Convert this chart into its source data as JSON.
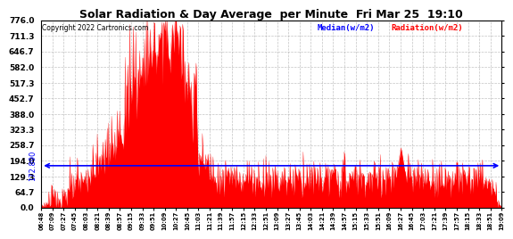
{
  "title": "Solar Radiation & Day Average  per Minute  Fri Mar 25  19:10",
  "copyright": "Copyright 2022 Cartronics.com",
  "median_value": 172.89,
  "median_label": "172.890",
  "y_ticks": [
    0.0,
    64.7,
    129.3,
    194.0,
    258.7,
    323.3,
    388.0,
    452.7,
    517.3,
    582.0,
    646.7,
    711.3,
    776.0
  ],
  "y_max": 776.0,
  "y_min": 0.0,
  "legend_median_color": "#0000FF",
  "legend_radiation_color": "#FF0000",
  "median_line_color": "#0000FF",
  "radiation_color": "#FF0000",
  "background_color": "#FFFFFF",
  "grid_color": "#AAAAAA",
  "x_labels": [
    "06:48",
    "07:09",
    "07:27",
    "07:45",
    "08:03",
    "08:21",
    "08:39",
    "08:57",
    "09:15",
    "09:33",
    "09:51",
    "10:09",
    "10:27",
    "10:45",
    "11:03",
    "11:21",
    "11:39",
    "11:57",
    "12:15",
    "12:33",
    "12:51",
    "13:09",
    "13:27",
    "13:45",
    "14:03",
    "14:21",
    "14:39",
    "14:57",
    "15:15",
    "15:33",
    "15:51",
    "16:09",
    "16:27",
    "16:45",
    "17:03",
    "17:21",
    "17:39",
    "17:57",
    "18:15",
    "18:33",
    "18:51",
    "19:09"
  ]
}
